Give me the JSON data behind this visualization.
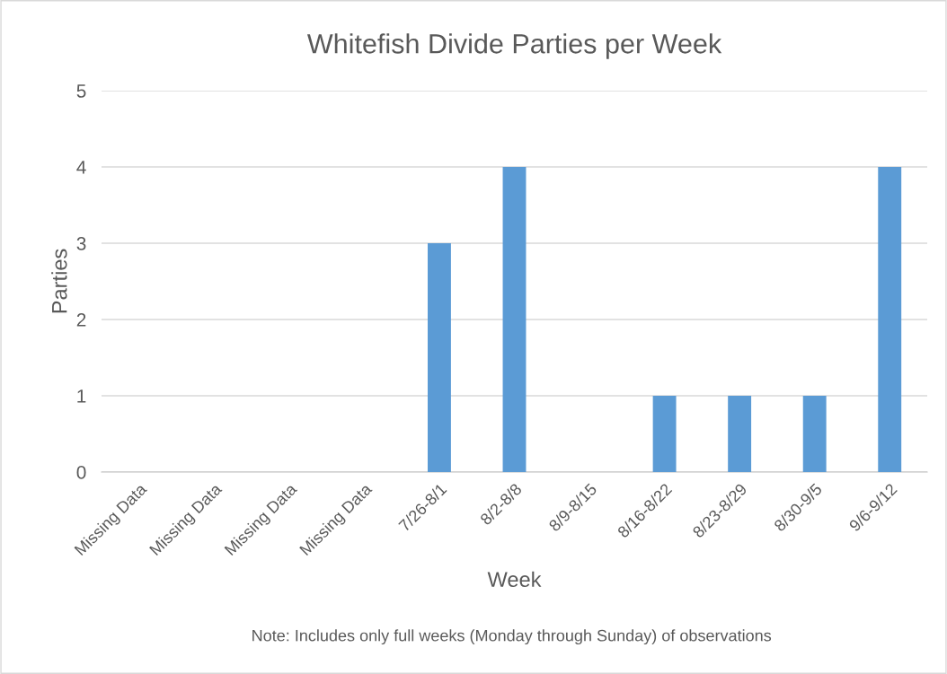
{
  "chart_data": {
    "type": "bar",
    "title": "Whitefish Divide Parties per Week",
    "xlabel": "Week",
    "ylabel": "Parties",
    "categories": [
      "Missing Data",
      "Missing Data",
      "Missing Data",
      "Missing Data",
      "7/26-8/1",
      "8/2-8/8",
      "8/9-8/15",
      "8/16-8/22",
      "8/23-8/29",
      "8/30-9/5",
      "9/6-9/12"
    ],
    "series": [
      {
        "color": "#5b9bd5",
        "values": [
          null,
          null,
          null,
          null,
          3,
          4,
          0,
          1,
          1,
          1,
          4
        ]
      }
    ],
    "ylim": [
      0,
      5
    ],
    "yticks": [
      0,
      1,
      2,
      3,
      4,
      5
    ],
    "grid": "y",
    "legend": false,
    "annotations": [
      "Note: Includes only full weeks (Monday through Sunday) of observations"
    ]
  }
}
